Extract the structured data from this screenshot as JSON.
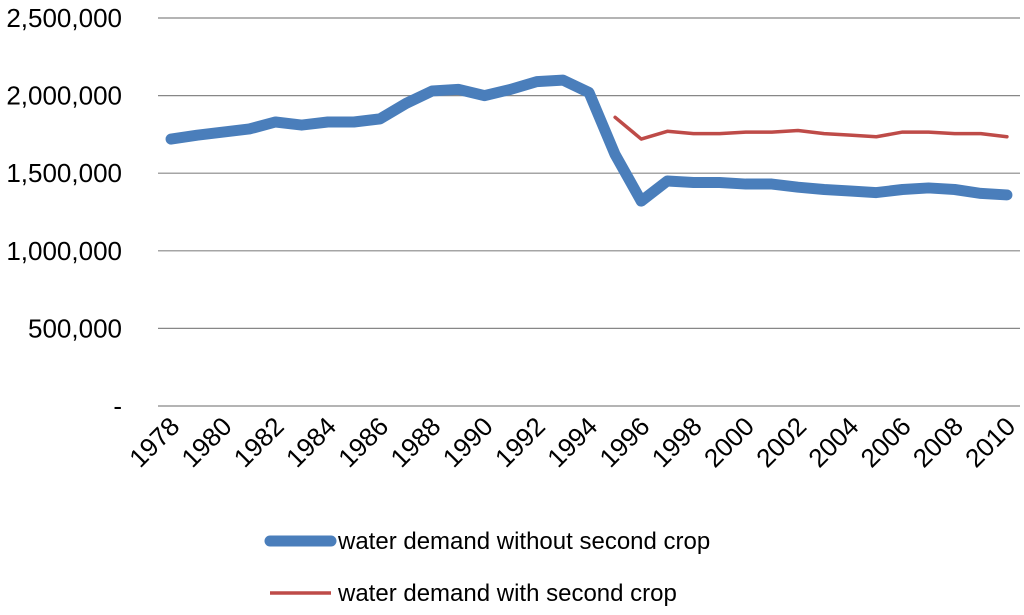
{
  "chart_data": {
    "type": "line",
    "title": "",
    "xlabel": "",
    "ylabel": "",
    "ylim": [
      0,
      2500000
    ],
    "yticks": [
      0,
      500000,
      1000000,
      1500000,
      2000000,
      2500000
    ],
    "ytick_labels": [
      "-",
      "500,000",
      "1,000,000",
      "1,500,000",
      "2,000,000",
      "2,500,000"
    ],
    "x": [
      1978,
      1979,
      1980,
      1981,
      1982,
      1983,
      1984,
      1985,
      1986,
      1987,
      1988,
      1989,
      1990,
      1991,
      1992,
      1993,
      1994,
      1995,
      1996,
      1997,
      1998,
      1999,
      2000,
      2001,
      2002,
      2003,
      2004,
      2005,
      2006,
      2007,
      2008,
      2009,
      2010
    ],
    "xticks": [
      "1978",
      "1980",
      "1982",
      "1984",
      "1986",
      "1988",
      "1990",
      "1992",
      "1994",
      "1996",
      "1998",
      "2000",
      "2002",
      "2004",
      "2006",
      "2008",
      "2010"
    ],
    "grid": true,
    "legend_position": "bottom",
    "series": [
      {
        "name": "water demand without second crop",
        "color": "#4A7EBB",
        "values": [
          1720000,
          1745000,
          1765000,
          1785000,
          1830000,
          1810000,
          1830000,
          1830000,
          1850000,
          1950000,
          2030000,
          2040000,
          2000000,
          2040000,
          2090000,
          2100000,
          2020000,
          1620000,
          1320000,
          1450000,
          1440000,
          1440000,
          1430000,
          1430000,
          1410000,
          1395000,
          1385000,
          1375000,
          1395000,
          1405000,
          1395000,
          1370000,
          1360000
        ]
      },
      {
        "name": "water demand with second crop",
        "color": "#BE4B48",
        "values": [
          null,
          null,
          null,
          null,
          null,
          null,
          null,
          null,
          null,
          null,
          null,
          null,
          null,
          null,
          null,
          null,
          null,
          1860000,
          1720000,
          1770000,
          1755000,
          1755000,
          1765000,
          1765000,
          1775000,
          1755000,
          1745000,
          1735000,
          1765000,
          1765000,
          1755000,
          1755000,
          1735000
        ]
      }
    ]
  }
}
